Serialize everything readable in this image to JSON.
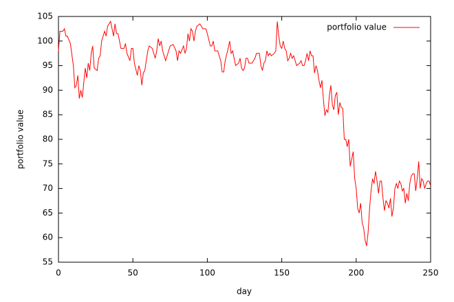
{
  "chart_data": {
    "type": "line",
    "xlabel": "day",
    "ylabel": "portfolio value",
    "xlim": [
      0,
      250
    ],
    "xticks": [
      0,
      50,
      100,
      150,
      200,
      250
    ],
    "ylim": [
      55,
      105
    ],
    "yticks": [
      55,
      60,
      65,
      70,
      75,
      80,
      85,
      90,
      95,
      100,
      105
    ],
    "legend": "upper right",
    "x": [
      0,
      1,
      3,
      4,
      5,
      6,
      8,
      10,
      11,
      12,
      13,
      14,
      15,
      16,
      18,
      19,
      20,
      21,
      22,
      23,
      24,
      26,
      27,
      28,
      29,
      30,
      31,
      32,
      33,
      35,
      36,
      37,
      38,
      39,
      40,
      42,
      44,
      45,
      46,
      48,
      49,
      50,
      51,
      53,
      54,
      55,
      56,
      57,
      58,
      60,
      61,
      63,
      65,
      66,
      67,
      68,
      69,
      70,
      72,
      73,
      75,
      77,
      79,
      80,
      81,
      82,
      84,
      85,
      86,
      87,
      88,
      89,
      90,
      91,
      92,
      93,
      95,
      97,
      99,
      100,
      102,
      103,
      104,
      105,
      107,
      109,
      110,
      111,
      112,
      114,
      115,
      116,
      117,
      119,
      121,
      122,
      123,
      124,
      125,
      126,
      127,
      128,
      130,
      132,
      133,
      135,
      136,
      137,
      138,
      139,
      140,
      141,
      142,
      143,
      145,
      146,
      147,
      148,
      149,
      150,
      151,
      152,
      153,
      154,
      155,
      156,
      157,
      158,
      160,
      162,
      163,
      164,
      165,
      166,
      167,
      168,
      169,
      170,
      171,
      172,
      173,
      174,
      175,
      176,
      177,
      178,
      179,
      180,
      181,
      182,
      183,
      184,
      185,
      186,
      187,
      188,
      189,
      190,
      191,
      192,
      193,
      194,
      195,
      196,
      197,
      198,
      199,
      200,
      201,
      202,
      203,
      204,
      205,
      206,
      207,
      208,
      209,
      210,
      211,
      212,
      213,
      214,
      215,
      216,
      217,
      218,
      219,
      220,
      221,
      222,
      223,
      224,
      225,
      226,
      227,
      228,
      229,
      230,
      231,
      232,
      233,
      234,
      235,
      236,
      237,
      238,
      239,
      240,
      241,
      242,
      243,
      244,
      245,
      246,
      247,
      248,
      249,
      250
    ],
    "series": [
      {
        "name": "portfolio value",
        "color": "#ff0000",
        "values": [
          98,
          102,
          102,
          102.5,
          101,
          101,
          99.5,
          95,
          90.5,
          91,
          93,
          88.3,
          90,
          88.5,
          94.5,
          92.5,
          95.5,
          94,
          97.5,
          99,
          94.5,
          94,
          96.5,
          97,
          100,
          101,
          102,
          101,
          103,
          104,
          102.5,
          101,
          103.5,
          101.5,
          101.5,
          98.5,
          98.5,
          99.5,
          97.5,
          96,
          98.5,
          98.5,
          95.5,
          93,
          95,
          94,
          91,
          93.5,
          94,
          98,
          99,
          98.5,
          96.5,
          98,
          100.5,
          99,
          100,
          98,
          96,
          97,
          99,
          99.3,
          98,
          96,
          98,
          97.5,
          99,
          97.5,
          98.5,
          101.5,
          100,
          102.5,
          102,
          100,
          102,
          103,
          103.5,
          102.5,
          102.5,
          101.5,
          99,
          99,
          100,
          98,
          98,
          96,
          93.7,
          93.7,
          96,
          98.5,
          100,
          97.5,
          98,
          95,
          95.5,
          96.5,
          94.5,
          94,
          94.5,
          96.5,
          96.5,
          95.5,
          95.5,
          96.5,
          97.5,
          97.5,
          95,
          94,
          95.5,
          96,
          98,
          97,
          97.5,
          97,
          97.5,
          98,
          104,
          101,
          99,
          98.5,
          100,
          98.5,
          98,
          96,
          96.5,
          97.5,
          96.5,
          97,
          95,
          95.5,
          96,
          95,
          95,
          96,
          97.5,
          96,
          98,
          97,
          97,
          93.5,
          95,
          94,
          92,
          90.5,
          92,
          88,
          84.8,
          86,
          85.5,
          89,
          91,
          87,
          86,
          89,
          89.5,
          85,
          87.5,
          86.5,
          86.3,
          80,
          80,
          78.5,
          80,
          74.5,
          76,
          77.5,
          72,
          70,
          66,
          65,
          67,
          63,
          62,
          59.5,
          58.3,
          61,
          66,
          69.5,
          72,
          71,
          73.5,
          71.5,
          69,
          71.5,
          71.5,
          68,
          65.5,
          67.5,
          67,
          66,
          68,
          64.3,
          66,
          70,
          71,
          70,
          71.5,
          71,
          69.5,
          70,
          67,
          69,
          67.5,
          71,
          72.5,
          73,
          73,
          69.5,
          72,
          75.5,
          70,
          72,
          71.5,
          70,
          71,
          71.5,
          71.5,
          70.5
        ]
      }
    ]
  }
}
